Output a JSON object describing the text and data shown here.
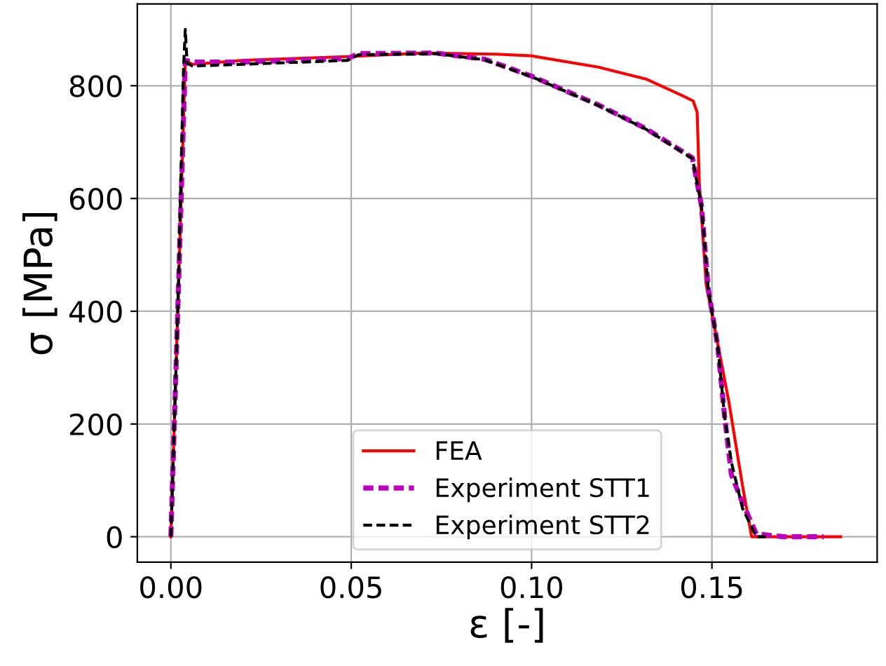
{
  "chart_data": {
    "type": "line",
    "xlabel": "ε [-]",
    "ylabel": "σ [MPa]",
    "xlim": [
      -0.0093,
      0.1958
    ],
    "ylim": [
      -45,
      945
    ],
    "xticks": [
      {
        "value": 0,
        "label": "0.00"
      },
      0.05,
      {
        "value": 0.1,
        "label": "0.10"
      },
      0.15
    ],
    "yticks": [
      0,
      200,
      400,
      600,
      800
    ],
    "grid": true,
    "legend": "bottom",
    "series": [
      {
        "name": "FEA",
        "color": "#ff0000",
        "line_style": "solid",
        "x": [
          0,
          0.002,
          0.004,
          0.006,
          0.02,
          0.05,
          0.07,
          0.09,
          0.1,
          0.1185,
          0.1317,
          0.142,
          0.1448,
          0.1459,
          0.1465,
          0.1478,
          0.1484,
          0.1522,
          0.1547,
          0.1585,
          0.161,
          0.17,
          0.1857
        ],
        "values": [
          0,
          420,
          845,
          838,
          845,
          852,
          858,
          856,
          853,
          833,
          812,
          782,
          773,
          753,
          628,
          504,
          447,
          323,
          239,
          90,
          0,
          0,
          0
        ]
      },
      {
        "name": "Experiment STT1",
        "color": "#bf00bf",
        "line_style": "dashed",
        "x": [
          0,
          0.002,
          0.004,
          0.006,
          0.02,
          0.049,
          0.052,
          0.0735,
          0.087,
          0.1,
          0.1185,
          0.1317,
          0.1446,
          0.1471,
          0.149,
          0.1516,
          0.1535,
          0.1554,
          0.1585,
          0.1623,
          0.17,
          0.181
        ],
        "values": [
          0,
          420,
          845,
          842,
          842,
          848,
          857,
          858,
          847,
          817,
          766,
          724,
          672,
          587,
          438,
          339,
          214,
          110,
          60,
          5,
          0,
          0
        ]
      },
      {
        "name": "Experiment STT2",
        "color": "#000000",
        "line_style": "dashed",
        "x": [
          0,
          0.002,
          0.0035,
          0.004,
          0.0045,
          0.006,
          0.02,
          0.049,
          0.052,
          0.0735,
          0.087,
          0.1,
          0.1185,
          0.1317,
          0.1446,
          0.1471,
          0.149,
          0.1516,
          0.1535,
          0.1554,
          0.1585,
          0.1623,
          0.165
        ],
        "values": [
          0,
          420,
          830,
          900,
          840,
          835,
          838,
          845,
          855,
          857,
          846,
          816,
          765,
          723,
          671,
          587,
          438,
          339,
          214,
          132,
          50,
          0,
          0
        ]
      }
    ]
  }
}
